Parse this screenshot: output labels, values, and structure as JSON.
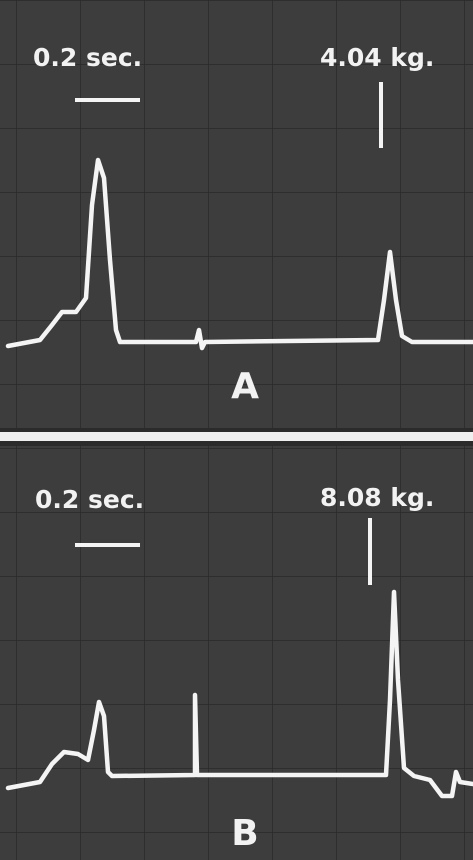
{
  "panels": [
    {
      "time_scale": "0.2 sec.",
      "force_scale": "4.04 kg.",
      "label": "A"
    },
    {
      "time_scale": "0.2 sec.",
      "force_scale": "8.08 kg.",
      "label": "B"
    }
  ]
}
